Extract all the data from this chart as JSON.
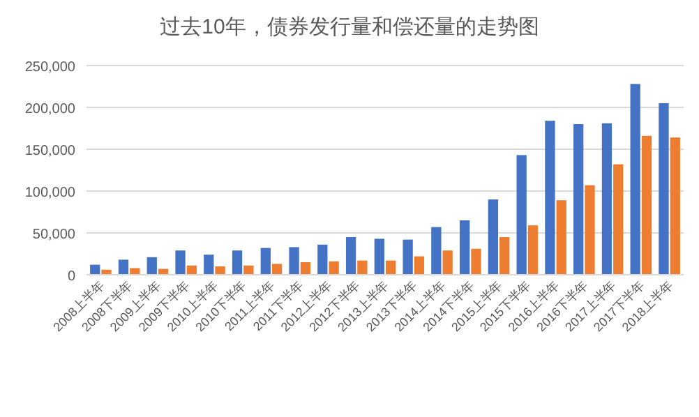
{
  "chart_data": {
    "type": "bar",
    "title": "过去10年，债券发行量和偿还量的走势图",
    "categories": [
      "2008上半年",
      "2008下半年",
      "2009上半年",
      "2009下半年",
      "2010上半年",
      "2010下半年",
      "2011上半年",
      "2011下半年",
      "2012上半年",
      "2012下半年",
      "2013上半年",
      "2013下半年",
      "2014上半年",
      "2014下半年",
      "2015上半年",
      "2015下半年",
      "2016上半年",
      "2016下半年",
      "2017上半年",
      "2017下半年",
      "2018上半年"
    ],
    "series": [
      {
        "color": "#4472c4",
        "values": [
          12000,
          18000,
          21000,
          29000,
          24000,
          29000,
          32000,
          33000,
          36000,
          45000,
          43000,
          42000,
          57000,
          65000,
          90000,
          143000,
          184000,
          180000,
          181000,
          228000,
          205000
        ]
      },
      {
        "color": "#ed7d31",
        "values": [
          6000,
          8000,
          7000,
          11000,
          10000,
          11000,
          13000,
          15000,
          16000,
          17000,
          17000,
          22000,
          29000,
          31000,
          45000,
          59000,
          89000,
          107000,
          132000,
          166000,
          164000
        ]
      }
    ],
    "ylim": [
      0,
      250000
    ],
    "yticks": [
      {
        "value": 0,
        "label": "0"
      },
      {
        "value": 50000,
        "label": "50,000"
      },
      {
        "value": 100000,
        "label": "100,000"
      },
      {
        "value": 150000,
        "label": "150,000"
      },
      {
        "value": 200000,
        "label": "200,000"
      },
      {
        "value": 250000,
        "label": "250,000"
      }
    ],
    "grid": "y"
  }
}
